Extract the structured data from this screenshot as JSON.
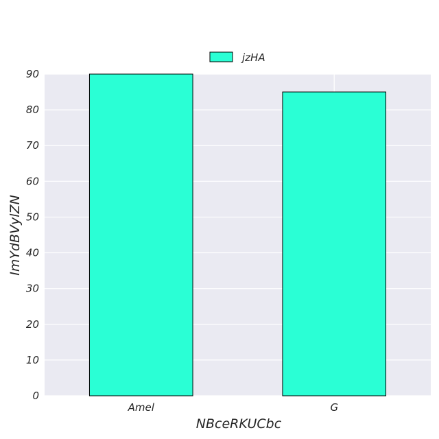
{
  "chart_data": {
    "type": "bar",
    "categories": [
      "Amel",
      "G"
    ],
    "series": [
      {
        "name": "jzHA",
        "values": [
          90,
          85
        ]
      }
    ],
    "xlabel": "NBceRKUCbc",
    "ylabel": "ImYdBVylZN",
    "ylim": [
      0,
      90
    ],
    "yticks": [
      0,
      10,
      20,
      30,
      40,
      50,
      60,
      70,
      80,
      90
    ],
    "grid": true,
    "legend_position": "top-center",
    "colors": {
      "bar": "#2affd5",
      "bar_edge": "#000000",
      "plot_background": "#eaeaf2",
      "grid": "#ffffff"
    }
  }
}
